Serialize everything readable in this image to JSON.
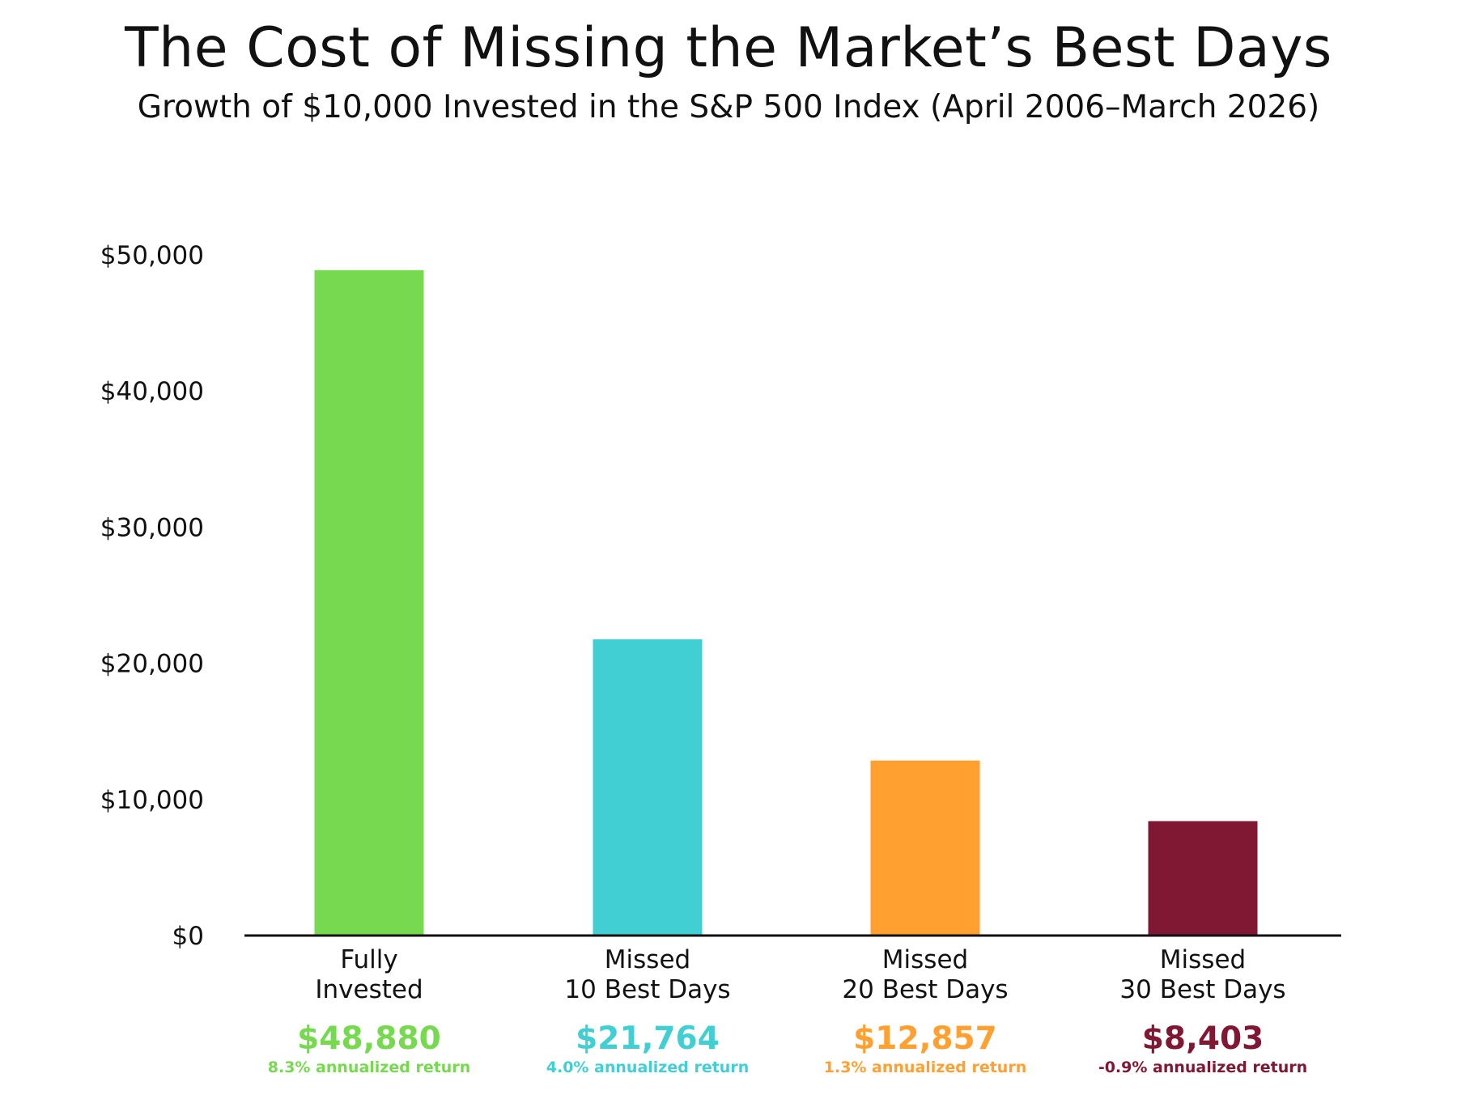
{
  "chart_data": {
    "type": "bar",
    "title": "The Cost of Missing the Market’s Best Days",
    "subtitle": "Growth of $10,000 Invested in the S&P 500 Index (April 2006–March 2026)",
    "categories": [
      [
        "Fully",
        "Invested"
      ],
      [
        "Missed",
        "10 Best Days"
      ],
      [
        "Missed",
        "20 Best Days"
      ],
      [
        "Missed",
        "30 Best Days"
      ]
    ],
    "values": [
      48880,
      21764,
      12857,
      8403
    ],
    "value_labels": [
      "$48,880",
      "$21,764",
      "$12,857",
      "$8,403"
    ],
    "return_labels": [
      "8.3% annualized return",
      "4.0% annualized return",
      "1.3% annualized return",
      "-0.9% annualized return"
    ],
    "colors": [
      "#77d94f",
      "#42cfd4",
      "#ffa030",
      "#801834"
    ],
    "ylim": [
      0,
      50000
    ],
    "yticks": [
      0,
      10000,
      20000,
      30000,
      40000,
      50000
    ],
    "ytick_labels": [
      "$0",
      "$10,000",
      "$20,000",
      "$30,000",
      "$40,000",
      "$50,000"
    ],
    "xlabel": "",
    "ylabel": "",
    "grid": false
  }
}
